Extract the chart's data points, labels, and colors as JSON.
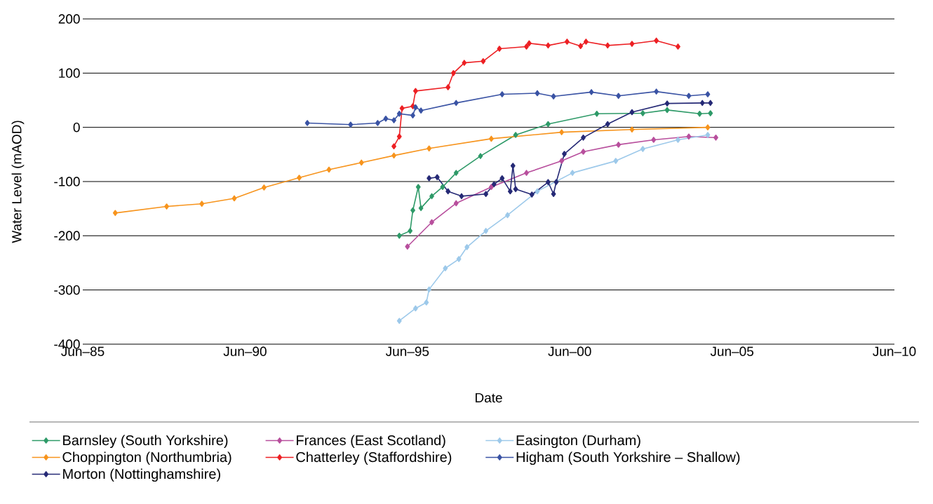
{
  "chart_data": {
    "type": "line",
    "xlabel": "Date",
    "ylabel": "Water Level (mAOD)",
    "xlim": [
      "1985-06",
      "2010-06"
    ],
    "xticks": [
      {
        "value": "1985-06",
        "label": "Jun–85"
      },
      {
        "value": "1990-06",
        "label": "Jun–90"
      },
      {
        "value": "1995-06",
        "label": "Jun–95"
      },
      {
        "value": "2000-06",
        "label": "Jun–00"
      },
      {
        "value": "2005-06",
        "label": "Jun–05"
      },
      {
        "value": "2010-06",
        "label": "Jun–10"
      }
    ],
    "ylim": [
      -400,
      200
    ],
    "yticks": [
      -400,
      -300,
      -200,
      -100,
      0,
      100,
      200
    ],
    "grid": "y",
    "legend": "bottom",
    "marker": "diamond",
    "line_style": "solid",
    "series": [
      {
        "name": "Barnsley (South Yorkshire)",
        "color": "#2e9a68",
        "x": [
          "1995-03",
          "1995-07",
          "1995-08",
          "1995-10",
          "1995-11",
          "1996-03",
          "1996-07",
          "1996-12",
          "1997-09",
          "1998-10",
          "1999-10",
          "2001-04",
          "2002-09",
          "2003-06",
          "2004-06",
          "2004-10"
        ],
        "values": [
          -200,
          -191,
          -153,
          -110,
          -149,
          -127,
          -110,
          -84,
          -53,
          -14,
          6,
          25,
          26,
          32,
          25,
          26
        ]
      },
      {
        "name": "Frances (East Scotland)",
        "color": "#b84f9d",
        "x": [
          "1995-06",
          "1996-03",
          "1996-12",
          "1998-01",
          "1999-02",
          "2000-03",
          "2000-11",
          "2001-12",
          "2003-01",
          "2004-02",
          "2004-12"
        ],
        "values": [
          -220,
          -175,
          -140,
          -110,
          -84,
          -62,
          -45,
          -32,
          -23,
          -17,
          -19
        ]
      },
      {
        "name": "Easington (Durham)",
        "color": "#9dc9ea",
        "x": [
          "1995-03",
          "1995-09",
          "1996-01",
          "1996-02",
          "1996-08",
          "1997-01",
          "1997-04",
          "1997-11",
          "1998-07",
          "1999-06",
          "2000-07",
          "2001-11",
          "2002-09",
          "2003-10",
          "2004-09"
        ],
        "values": [
          -357,
          -334,
          -323,
          -299,
          -260,
          -243,
          -221,
          -191,
          -162,
          -118,
          -84,
          -62,
          -40,
          -23,
          -14
        ]
      },
      {
        "name": "Choppington (Northumbria)",
        "color": "#f7941d",
        "x": [
          "1986-06",
          "1988-01",
          "1989-02",
          "1990-02",
          "1991-01",
          "1992-02",
          "1993-01",
          "1994-01",
          "1995-01",
          "1996-02",
          "1998-01",
          "2000-03",
          "2002-05",
          "2004-09"
        ],
        "values": [
          -158,
          -146,
          -141,
          -131,
          -111,
          -93,
          -78,
          -65,
          -52,
          -39,
          -21,
          -9,
          -4,
          0
        ]
      },
      {
        "name": "Chatterley (Staffordshire)",
        "color": "#ed2024",
        "x": [
          "1995-01",
          "1995-03",
          "1995-04",
          "1995-08",
          "1995-09",
          "1996-09",
          "1996-11",
          "1997-03",
          "1997-10",
          "1998-04",
          "1999-02",
          "1999-03",
          "1999-10",
          "2000-05",
          "2000-10",
          "2000-12",
          "2001-08",
          "2002-05",
          "2003-02",
          "2003-10"
        ],
        "values": [
          -35,
          -17,
          35,
          39,
          67,
          74,
          100,
          119,
          122,
          145,
          149,
          155,
          151,
          158,
          150,
          158,
          151,
          154,
          160,
          149
        ]
      },
      {
        "name": "Higham (South Yorkshire – Shallow)",
        "color": "#3a53a4",
        "x": [
          "1992-05",
          "1993-09",
          "1994-07",
          "1994-10",
          "1995-01",
          "1995-03",
          "1995-08",
          "1995-09",
          "1995-11",
          "1996-12",
          "1998-05",
          "1999-06",
          "1999-12",
          "2001-02",
          "2001-12",
          "2003-02",
          "2004-02",
          "2004-09"
        ],
        "values": [
          8,
          5,
          8,
          16,
          13,
          25,
          22,
          37,
          31,
          45,
          61,
          63,
          57,
          65,
          58,
          66,
          58,
          61
        ]
      },
      {
        "name": "Morton (Nottinghamshire)",
        "color": "#262a76",
        "x": [
          "1996-02",
          "1996-05",
          "1996-09",
          "1997-02",
          "1997-11",
          "1998-02",
          "1998-05",
          "1998-08",
          "1998-09",
          "1998-10",
          "1999-04",
          "1999-10",
          "1999-12",
          "2000-01",
          "2000-04",
          "2000-11",
          "2001-08",
          "2002-05",
          "2003-06",
          "2004-07",
          "2004-10"
        ],
        "values": [
          -94,
          -92,
          -118,
          -127,
          -123,
          -105,
          -94,
          -118,
          -71,
          -114,
          -124,
          -101,
          -123,
          -101,
          -49,
          -19,
          6,
          28,
          44,
          45,
          45
        ]
      }
    ]
  }
}
